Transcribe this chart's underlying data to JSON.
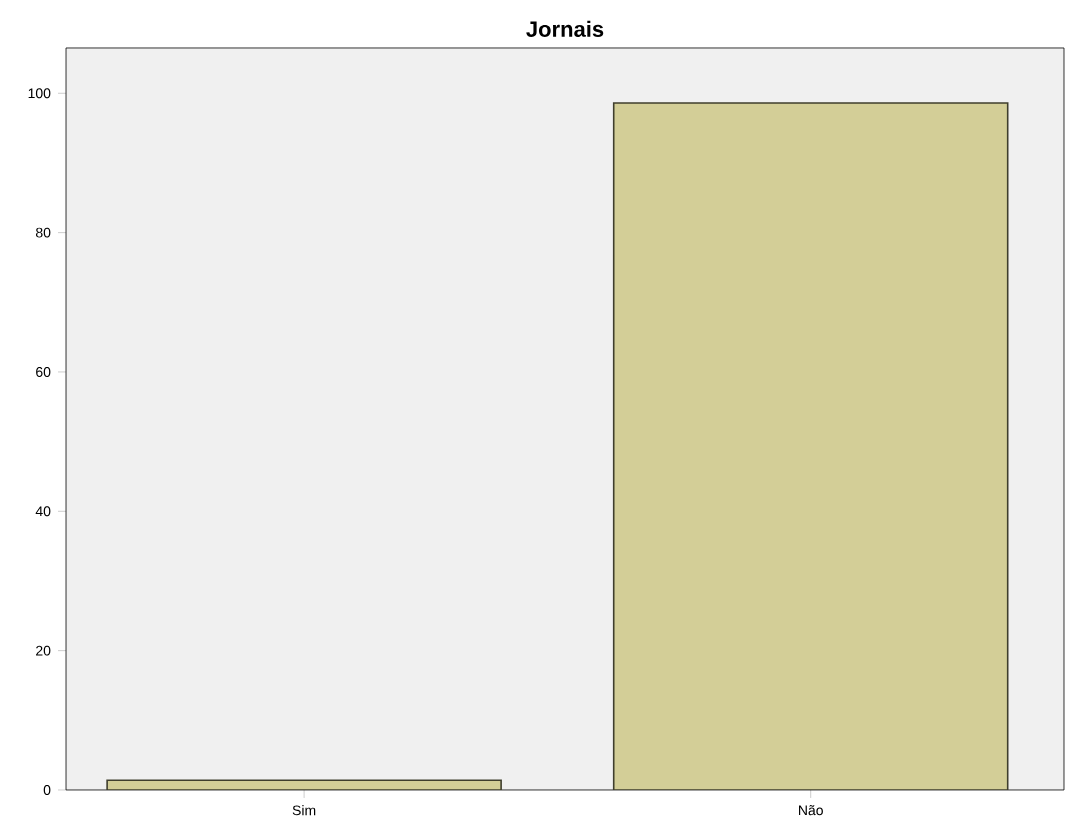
{
  "chart_data": {
    "type": "bar",
    "title": "Jornais",
    "categories": [
      "Sim",
      "Não"
    ],
    "values": [
      1.4,
      98.6
    ],
    "color": "#d3ce97",
    "ylim": [
      0,
      106.5
    ],
    "yticks": [
      0,
      20,
      40,
      60,
      80,
      100
    ],
    "grid": false
  }
}
